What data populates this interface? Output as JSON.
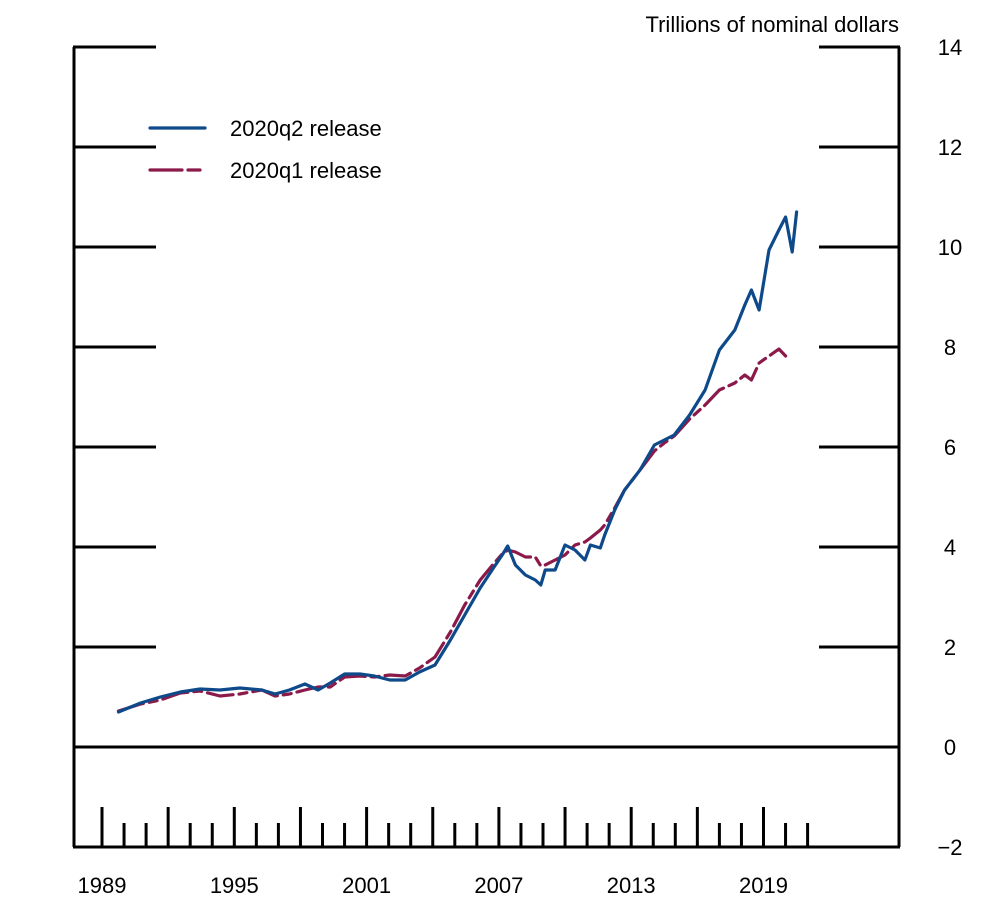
{
  "chart_data": {
    "type": "line",
    "title": "",
    "ylabel": "Trillions of nominal dollars",
    "xlabel": "",
    "ylim": [
      -2,
      14
    ],
    "xlim": [
      1988.3,
      2025.5
    ],
    "yticks": [
      -2,
      0,
      2,
      4,
      6,
      8,
      10,
      12,
      14
    ],
    "ytick_labels": [
      "−2",
      "0",
      "2",
      "4",
      "6",
      "8",
      "10",
      "12",
      "14"
    ],
    "xtick_labels": [
      "1989",
      "1995",
      "2001",
      "2007",
      "2013",
      "2019"
    ],
    "xtick_major_years": [
      1989,
      1992,
      1995,
      1998,
      2001,
      2004,
      2007,
      2010,
      2013,
      2016,
      2019
    ],
    "xtick_minor_years": [
      1990,
      1991,
      1993,
      1994,
      1996,
      1997,
      1999,
      2000,
      2002,
      2003,
      2005,
      2006,
      2008,
      2009,
      2011,
      2012,
      2014,
      2015,
      2017,
      2018,
      2020,
      2021
    ],
    "zero_line": 0,
    "grid": false,
    "legend_position": "top-left",
    "series": [
      {
        "name": "2020q2 release",
        "color": "#0e4a8a",
        "style": "solid",
        "x": [
          1989.75,
          1990.75,
          1991.65,
          1992.55,
          1993.45,
          1994.35,
          1995.25,
          1996.25,
          1996.85,
          1997.5,
          1998.2,
          1998.8,
          1999.35,
          2000.0,
          2000.7,
          2001.35,
          2002.05,
          2002.75,
          2003.4,
          2004.1,
          2004.8,
          2005.45,
          2006.15,
          2006.75,
          2007.15,
          2007.4,
          2007.75,
          2008.2,
          2008.65,
          2008.9,
          2009.1,
          2009.55,
          2010.0,
          2010.45,
          2010.9,
          2011.15,
          2011.6,
          2011.8,
          2012.25,
          2012.7,
          2013.4,
          2014.05,
          2014.5,
          2014.95,
          2015.65,
          2016.35,
          2017.0,
          2017.7,
          2018.15,
          2018.45,
          2018.8,
          2019.25,
          2019.7,
          2020.0,
          2020.3,
          2020.5
        ],
        "values": [
          0.7,
          0.88,
          1.0,
          1.1,
          1.16,
          1.14,
          1.18,
          1.14,
          1.06,
          1.14,
          1.26,
          1.14,
          1.28,
          1.46,
          1.46,
          1.42,
          1.34,
          1.34,
          1.5,
          1.64,
          2.14,
          2.64,
          3.18,
          3.58,
          3.84,
          4.02,
          3.64,
          3.44,
          3.34,
          3.24,
          3.54,
          3.54,
          4.04,
          3.94,
          3.74,
          4.04,
          3.98,
          4.24,
          4.74,
          5.14,
          5.54,
          6.04,
          6.14,
          6.24,
          6.64,
          7.14,
          7.94,
          8.34,
          8.84,
          9.14,
          8.74,
          9.94,
          10.34,
          10.6,
          9.9,
          10.7
        ]
      },
      {
        "name": "2020q1 release",
        "color": "#8b1a4a",
        "style": "dashed",
        "x": [
          1989.75,
          1990.75,
          1991.65,
          1992.55,
          1993.45,
          1994.35,
          1995.25,
          1996.25,
          1996.85,
          1997.5,
          1998.2,
          1998.8,
          1999.35,
          2000.0,
          2000.7,
          2001.35,
          2002.05,
          2002.75,
          2003.4,
          2004.1,
          2004.8,
          2005.45,
          2006.15,
          2006.75,
          2007.15,
          2007.4,
          2007.75,
          2008.2,
          2008.65,
          2008.9,
          2009.1,
          2009.55,
          2010.0,
          2010.45,
          2010.9,
          2011.15,
          2011.6,
          2011.8,
          2012.25,
          2012.7,
          2013.4,
          2014.05,
          2014.5,
          2014.95,
          2015.65,
          2016.35,
          2017.0,
          2017.7,
          2018.15,
          2018.45,
          2018.8,
          2019.25,
          2019.7,
          2020.0
        ],
        "values": [
          0.72,
          0.86,
          0.94,
          1.08,
          1.12,
          1.02,
          1.06,
          1.14,
          1.02,
          1.06,
          1.14,
          1.2,
          1.2,
          1.4,
          1.42,
          1.4,
          1.44,
          1.42,
          1.58,
          1.8,
          2.3,
          2.84,
          3.34,
          3.66,
          3.86,
          3.94,
          3.9,
          3.8,
          3.8,
          3.62,
          3.64,
          3.74,
          3.84,
          4.04,
          4.1,
          4.18,
          4.34,
          4.44,
          4.78,
          5.14,
          5.54,
          5.92,
          6.08,
          6.22,
          6.56,
          6.84,
          7.14,
          7.28,
          7.44,
          7.34,
          7.68,
          7.82,
          7.96,
          7.82
        ]
      }
    ]
  }
}
